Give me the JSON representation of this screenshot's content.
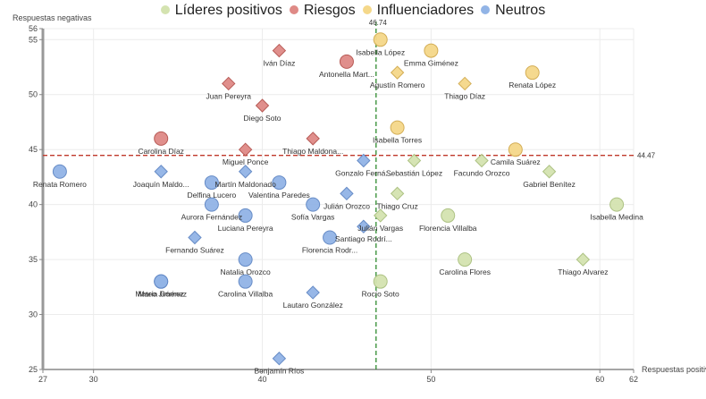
{
  "chart_data": {
    "type": "scatter",
    "title": "",
    "xlabel": "Respuestas positivas",
    "ylabel": "Respuestas negativas",
    "xlim": [
      27,
      62
    ],
    "ylim": [
      25,
      56
    ],
    "x_ticks": [
      27,
      30,
      40,
      50,
      60,
      62
    ],
    "y_ticks": [
      25,
      30,
      35,
      40,
      45,
      50,
      55,
      56
    ],
    "grid": true,
    "legend_position": "top-center",
    "reference_lines": {
      "x": {
        "value": 46.74,
        "label": "46.74",
        "color": "#2e8b2e",
        "style": "dashed"
      },
      "y": {
        "value": 44.47,
        "label": "44.47",
        "color": "#c0392b",
        "style": "dashed"
      }
    },
    "series": [
      {
        "name": "Líderes positivos",
        "color": "#d4e3b0",
        "stroke": "#a9bf7d",
        "points": [
          {
            "label": "Sebastián López",
            "x": 49,
            "y": 44,
            "shape": "diamond"
          },
          {
            "label": "Facundo Orozco",
            "x": 53,
            "y": 44,
            "shape": "diamond"
          },
          {
            "label": "Gabriel Benítez",
            "x": 57,
            "y": 43,
            "shape": "diamond"
          },
          {
            "label": "Isabella Medina",
            "x": 61,
            "y": 40,
            "shape": "circle"
          },
          {
            "label": "Thiago Cruz",
            "x": 48,
            "y": 41,
            "shape": "diamond"
          },
          {
            "label": "Julián Vargas",
            "x": 47,
            "y": 39,
            "shape": "diamond"
          },
          {
            "label": "Florencia Villalba",
            "x": 51,
            "y": 39,
            "shape": "circle"
          },
          {
            "label": "Carolina Flores",
            "x": 52,
            "y": 35,
            "shape": "circle"
          },
          {
            "label": "Thiago Alvarez",
            "x": 59,
            "y": 35,
            "shape": "diamond"
          },
          {
            "label": "Rocío Soto",
            "x": 47,
            "y": 33,
            "shape": "circle"
          }
        ]
      },
      {
        "name": "Riesgos",
        "color": "#df8a86",
        "stroke": "#b4524d",
        "points": [
          {
            "label": "Iván Díaz",
            "x": 41,
            "y": 54,
            "shape": "diamond"
          },
          {
            "label": "Antonella Mart...",
            "x": 45,
            "y": 53,
            "shape": "circle"
          },
          {
            "label": "Juan Pereyra",
            "x": 38,
            "y": 51,
            "shape": "diamond"
          },
          {
            "label": "Diego Soto",
            "x": 40,
            "y": 49,
            "shape": "diamond"
          },
          {
            "label": "Carolina Díaz",
            "x": 34,
            "y": 46,
            "shape": "circle"
          },
          {
            "label": "Thiago Maldona...",
            "x": 43,
            "y": 46,
            "shape": "diamond"
          },
          {
            "label": "Miguel Ponce",
            "x": 39,
            "y": 45,
            "shape": "diamond"
          }
        ]
      },
      {
        "name": "Influenciadores",
        "color": "#f5d88a",
        "stroke": "#d1a94c",
        "points": [
          {
            "label": "Isabella López",
            "x": 47,
            "y": 55,
            "shape": "circle"
          },
          {
            "label": "Emma Giménez",
            "x": 50,
            "y": 54,
            "shape": "circle"
          },
          {
            "label": "Agustín Romero",
            "x": 48,
            "y": 52,
            "shape": "diamond"
          },
          {
            "label": "Thiago Díaz",
            "x": 52,
            "y": 51,
            "shape": "diamond"
          },
          {
            "label": "Renata López",
            "x": 56,
            "y": 52,
            "shape": "circle"
          },
          {
            "label": "Isabella Torres",
            "x": 48,
            "y": 47,
            "shape": "circle"
          },
          {
            "label": "Camila Suárez",
            "x": 55,
            "y": 45,
            "shape": "circle"
          }
        ]
      },
      {
        "name": "Neutros",
        "color": "#92b4e6",
        "stroke": "#5f86c4",
        "points": [
          {
            "label": "Renata Romero",
            "x": 28,
            "y": 43,
            "shape": "circle"
          },
          {
            "label": "Joaquín Maldo...",
            "x": 34,
            "y": 43,
            "shape": "diamond"
          },
          {
            "label": "Gonzalo Ferná...",
            "x": 46,
            "y": 44,
            "shape": "diamond"
          },
          {
            "label": "Martín Maldonado",
            "x": 39,
            "y": 43,
            "shape": "diamond"
          },
          {
            "label": "Delfina Lucero",
            "x": 37,
            "y": 42,
            "shape": "circle"
          },
          {
            "label": "Valentina Paredes",
            "x": 41,
            "y": 42,
            "shape": "circle"
          },
          {
            "label": "Julián Orozco",
            "x": 45,
            "y": 41,
            "shape": "diamond"
          },
          {
            "label": "Aurora Fernández",
            "x": 37,
            "y": 40,
            "shape": "circle"
          },
          {
            "label": "Sofía Vargas",
            "x": 43,
            "y": 40,
            "shape": "circle"
          },
          {
            "label": "Luciana Pereyra",
            "x": 39,
            "y": 39,
            "shape": "circle"
          },
          {
            "label": "Santiago Rodrí...",
            "x": 46,
            "y": 38,
            "shape": "diamond"
          },
          {
            "label": "Fernando Suárez",
            "x": 36,
            "y": 37,
            "shape": "diamond"
          },
          {
            "label": "Florencia Rodr...",
            "x": 44,
            "y": 37,
            "shape": "circle"
          },
          {
            "label": "Natalia Orozco",
            "x": 39,
            "y": 35,
            "shape": "circle"
          },
          {
            "label": "Carolina Villalba",
            "x": 39,
            "y": 33,
            "shape": "circle"
          },
          {
            "label": "María Gómez",
            "x": 34,
            "y": 33,
            "shape": "circle"
          },
          {
            "label": "Mateo Jiménez",
            "x": 34,
            "y": 33,
            "shape": "circle"
          },
          {
            "label": "Lautaro González",
            "x": 43,
            "y": 32,
            "shape": "diamond"
          },
          {
            "label": "Benjamín Ríos",
            "x": 41,
            "y": 26,
            "shape": "diamond"
          }
        ]
      }
    ]
  }
}
